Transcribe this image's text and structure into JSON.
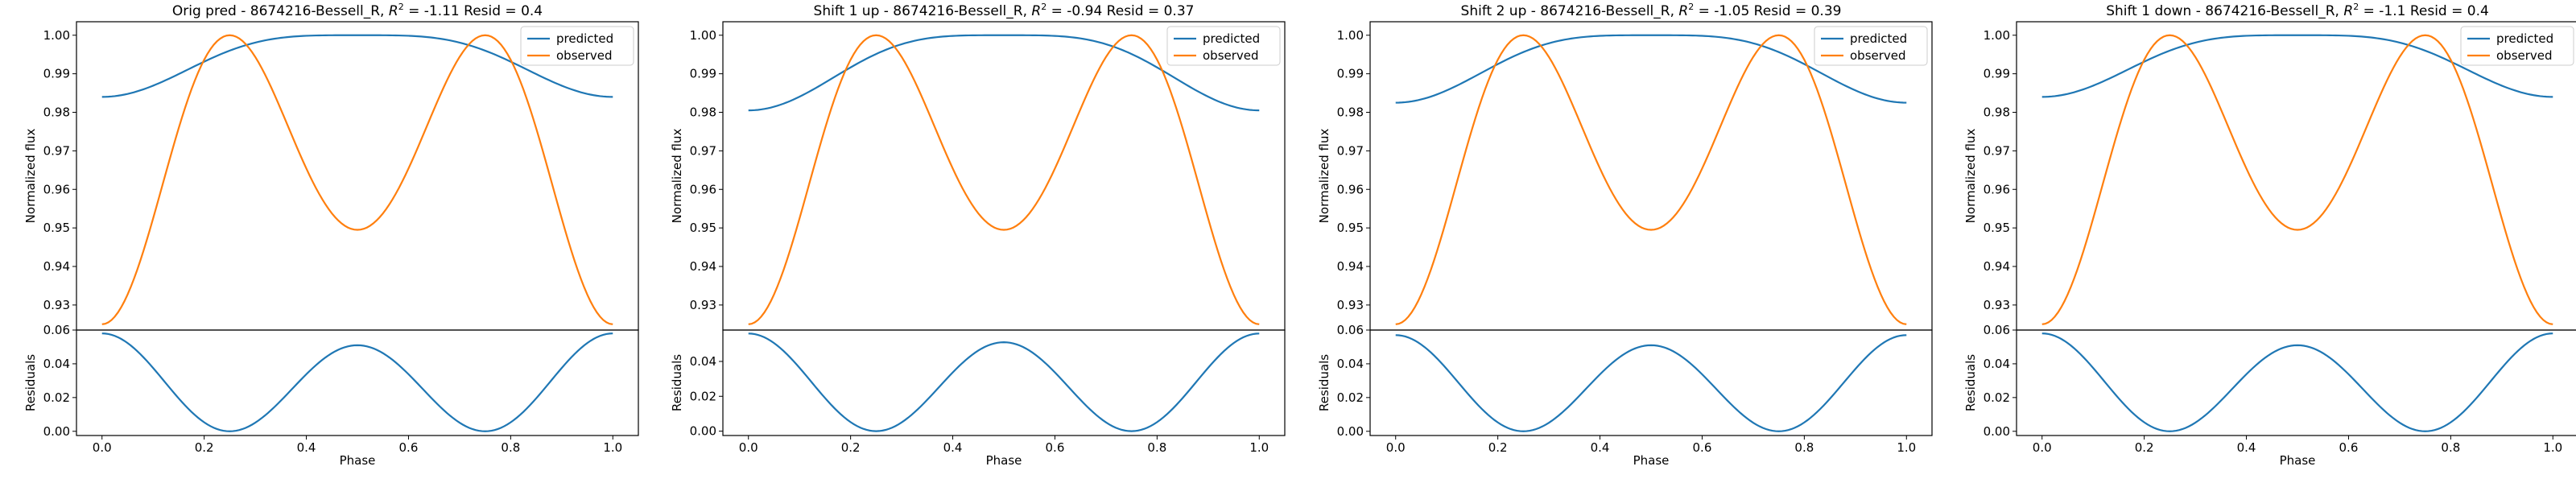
{
  "chart_data": [
    {
      "type": "line",
      "title": "Orig pred - 8674216-Bessell_R, $R^2 = $-1.11 Resid = 0.4",
      "title_parts": {
        "prefix": "Orig pred - 8674216-Bessell_R, ",
        "r2_value": "-1.11",
        "suffix": " Resid = 0.4"
      },
      "xlabel": "Phase",
      "ylabel": "Normalized flux",
      "resid_ylabel": "Residuals",
      "xlim": [
        -0.05,
        1.05
      ],
      "ylim": [
        0.9235,
        1.0035
      ],
      "resid_ylim": [
        -0.0025,
        0.06
      ],
      "xticks": [
        "0.0",
        "0.2",
        "0.4",
        "0.6",
        "0.8",
        "1.0"
      ],
      "yticks": [
        "0.93",
        "0.94",
        "0.95",
        "0.96",
        "0.97",
        "0.98",
        "0.99",
        "1.00"
      ],
      "resid_yticks": [
        "0.00",
        "0.02",
        "0.04",
        "0.06"
      ],
      "legend_position": "top-right",
      "legend": [
        "predicted",
        "observed"
      ],
      "series": [
        {
          "name": "predicted",
          "color": "#1f77b4",
          "shape": "predicted",
          "params": {
            "min": 0.984,
            "max": 1.0
          }
        },
        {
          "name": "observed",
          "color": "#ff7f0e",
          "shape": "observed",
          "params": {
            "min": 0.925,
            "mid": 0.9495,
            "max": 1.0
          }
        },
        {
          "name": "residuals",
          "color": "#1f77b4",
          "shape": "residual",
          "params": {
            "end": 0.058,
            "mid": 0.051
          }
        }
      ]
    },
    {
      "type": "line",
      "title": "Shift 1 up - 8674216-Bessell_R, $R^2 = $-0.94 Resid = 0.37",
      "title_parts": {
        "prefix": "Shift 1 up - 8674216-Bessell_R, ",
        "r2_value": "-0.94",
        "suffix": " Resid = 0.37"
      },
      "xlabel": "Phase",
      "ylabel": "Normalized flux",
      "resid_ylabel": "Residuals",
      "xlim": [
        -0.05,
        1.05
      ],
      "ylim": [
        0.9235,
        1.0035
      ],
      "resid_ylim": [
        -0.0025,
        0.058
      ],
      "xticks": [
        "0.0",
        "0.2",
        "0.4",
        "0.6",
        "0.8",
        "1.0"
      ],
      "yticks": [
        "0.93",
        "0.94",
        "0.95",
        "0.96",
        "0.97",
        "0.98",
        "0.99",
        "1.00"
      ],
      "resid_yticks": [
        "0.00",
        "0.02",
        "0.04"
      ],
      "legend_position": "top-right",
      "legend": [
        "predicted",
        "observed"
      ],
      "series": [
        {
          "name": "predicted",
          "color": "#1f77b4",
          "shape": "predicted",
          "params": {
            "min": 0.9805,
            "max": 1.0
          }
        },
        {
          "name": "observed",
          "color": "#ff7f0e",
          "shape": "observed",
          "params": {
            "min": 0.925,
            "mid": 0.9495,
            "max": 1.0
          }
        },
        {
          "name": "residuals",
          "color": "#1f77b4",
          "shape": "residual",
          "params": {
            "end": 0.056,
            "mid": 0.051
          }
        }
      ]
    },
    {
      "type": "line",
      "title": "Shift 2 up - 8674216-Bessell_R, $R^2 = $-1.05 Resid = 0.39",
      "title_parts": {
        "prefix": "Shift 2 up - 8674216-Bessell_R, ",
        "r2_value": "-1.05",
        "suffix": " Resid = 0.39"
      },
      "xlabel": "Phase",
      "ylabel": "Normalized flux",
      "resid_ylabel": "Residuals",
      "xlim": [
        -0.05,
        1.05
      ],
      "ylim": [
        0.9235,
        1.0035
      ],
      "resid_ylim": [
        -0.0025,
        0.06
      ],
      "xticks": [
        "0.0",
        "0.2",
        "0.4",
        "0.6",
        "0.8",
        "1.0"
      ],
      "yticks": [
        "0.93",
        "0.94",
        "0.95",
        "0.96",
        "0.97",
        "0.98",
        "0.99",
        "1.00"
      ],
      "resid_yticks": [
        "0.00",
        "0.02",
        "0.04",
        "0.06"
      ],
      "legend_position": "top-right",
      "legend": [
        "predicted",
        "observed"
      ],
      "series": [
        {
          "name": "predicted",
          "color": "#1f77b4",
          "shape": "predicted",
          "params": {
            "min": 0.9825,
            "max": 1.0
          }
        },
        {
          "name": "observed",
          "color": "#ff7f0e",
          "shape": "observed",
          "params": {
            "min": 0.925,
            "mid": 0.9495,
            "max": 1.0
          }
        },
        {
          "name": "residuals",
          "color": "#1f77b4",
          "shape": "residual",
          "params": {
            "end": 0.057,
            "mid": 0.051
          }
        }
      ]
    },
    {
      "type": "line",
      "title": "Shift 1 down - 8674216-Bessell_R, $R^2 = $-1.1 Resid = 0.4",
      "title_parts": {
        "prefix": "Shift 1 down - 8674216-Bessell_R, ",
        "r2_value": "-1.1",
        "suffix": " Resid = 0.4"
      },
      "xlabel": "Phase",
      "ylabel": "Normalized flux",
      "resid_ylabel": "Residuals",
      "xlim": [
        -0.05,
        1.05
      ],
      "ylim": [
        0.9235,
        1.0035
      ],
      "resid_ylim": [
        -0.0025,
        0.06
      ],
      "xticks": [
        "0.0",
        "0.2",
        "0.4",
        "0.6",
        "0.8",
        "1.0"
      ],
      "yticks": [
        "0.93",
        "0.94",
        "0.95",
        "0.96",
        "0.97",
        "0.98",
        "0.99",
        "1.00"
      ],
      "resid_yticks": [
        "0.00",
        "0.02",
        "0.04",
        "0.06"
      ],
      "legend_position": "top-right",
      "legend": [
        "predicted",
        "observed"
      ],
      "series": [
        {
          "name": "predicted",
          "color": "#1f77b4",
          "shape": "predicted",
          "params": {
            "min": 0.984,
            "max": 1.0
          }
        },
        {
          "name": "observed",
          "color": "#ff7f0e",
          "shape": "observed",
          "params": {
            "min": 0.925,
            "mid": 0.9495,
            "max": 1.0
          }
        },
        {
          "name": "residuals",
          "color": "#1f77b4",
          "shape": "residual",
          "params": {
            "end": 0.058,
            "mid": 0.051
          }
        }
      ]
    }
  ]
}
